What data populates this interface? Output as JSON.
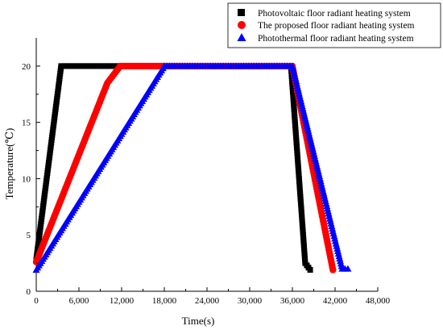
{
  "chart_data": {
    "type": "scatter",
    "xlabel": "Time(s)",
    "ylabel": "Temperature(℃)",
    "xlim": [
      0,
      48000
    ],
    "ylim": [
      0,
      22.5
    ],
    "x_ticks": [
      0,
      6000,
      12000,
      18000,
      24000,
      30000,
      36000,
      42000,
      48000
    ],
    "x_tick_labels": [
      "0",
      "6,000",
      "12,000",
      "18,000",
      "24,000",
      "30,000",
      "36,000",
      "42,000",
      "48,000"
    ],
    "y_ticks": [
      0,
      5,
      10,
      15,
      20
    ],
    "y_tick_labels": [
      "0",
      "5",
      "10",
      "15",
      "20"
    ],
    "grid": false,
    "legend_position": "top-right",
    "series": [
      {
        "name": "Photovoltaic floor radiant heating system",
        "color": "#000000",
        "marker": "square",
        "points": [
          [
            0,
            2.8
          ],
          [
            3500,
            20
          ],
          [
            35800,
            20
          ],
          [
            37800,
            2.5
          ],
          [
            38500,
            1.9
          ]
        ]
      },
      {
        "name": "The proposed floor radiant heating system",
        "color": "#ff0000",
        "marker": "circle",
        "points": [
          [
            0,
            2.6
          ],
          [
            10000,
            18.5
          ],
          [
            11800,
            20
          ],
          [
            36000,
            20
          ],
          [
            41700,
            1.9
          ]
        ]
      },
      {
        "name": "Photothermal floor radiant heating system",
        "color": "#0000ff",
        "marker": "triangle",
        "points": [
          [
            0,
            1.9
          ],
          [
            18000,
            20
          ],
          [
            36000,
            20
          ],
          [
            43000,
            2.0
          ],
          [
            43800,
            2.0
          ]
        ]
      }
    ]
  }
}
